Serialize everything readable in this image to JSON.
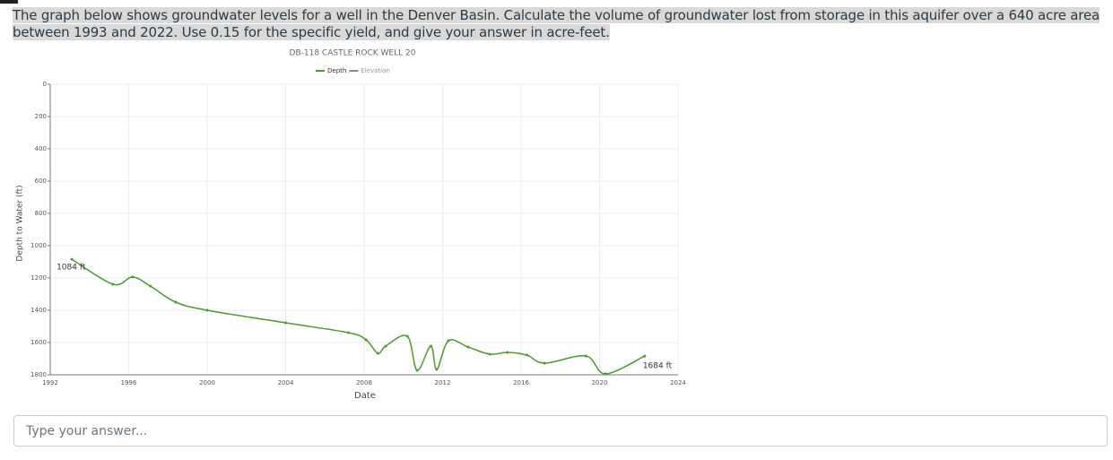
{
  "question": {
    "text": "The graph below shows groundwater levels for a well in the Denver Basin. Calculate the volume of groundwater lost from storage in this aquifer over a 640 acre area between 1993 and 2022. Use 0.15 for the specific yield, and give your answer in acre-feet."
  },
  "chart_data": {
    "type": "line",
    "title": "DB-118 CASTLE ROCK WELL 20",
    "x_label": "Date",
    "y_label": "Depth to Water (ft)",
    "legend": [
      {
        "name": "Depth",
        "color": "#4c9a2a"
      },
      {
        "name": "Elevation",
        "color": "#8a8a8a"
      }
    ],
    "color": "#4c9a2a",
    "x": [
      1993.1,
      1995.2,
      1996.2,
      1997.1,
      1998.4,
      2000,
      2004,
      2007.2,
      2008.1,
      2008.7,
      2009.1,
      2010.2,
      2010.7,
      2011.4,
      2011.7,
      2012.3,
      2013.3,
      2014.4,
      2015.3,
      2016.3,
      2017.2,
      2019.3,
      2020.3,
      2022.3
    ],
    "values": [
      1084,
      1239,
      1194,
      1250,
      1350,
      1400,
      1478,
      1539,
      1583,
      1667,
      1622,
      1561,
      1772,
      1622,
      1767,
      1589,
      1628,
      1672,
      1661,
      1678,
      1728,
      1683,
      1794,
      1684
    ],
    "annotations": [
      "1084 ft",
      "1684 ft"
    ],
    "xlim": [
      1992,
      2024
    ],
    "xticks": [
      1992,
      1996,
      2000,
      2004,
      2008,
      2012,
      2016,
      2020,
      2024
    ],
    "ylim": [
      0,
      1800
    ],
    "yticks": [
      0,
      200,
      400,
      600,
      800,
      1000,
      1200,
      1400,
      1600,
      1800
    ],
    "y_inverted": true,
    "grid": true
  },
  "answer_input": {
    "placeholder": "Type your answer..."
  }
}
